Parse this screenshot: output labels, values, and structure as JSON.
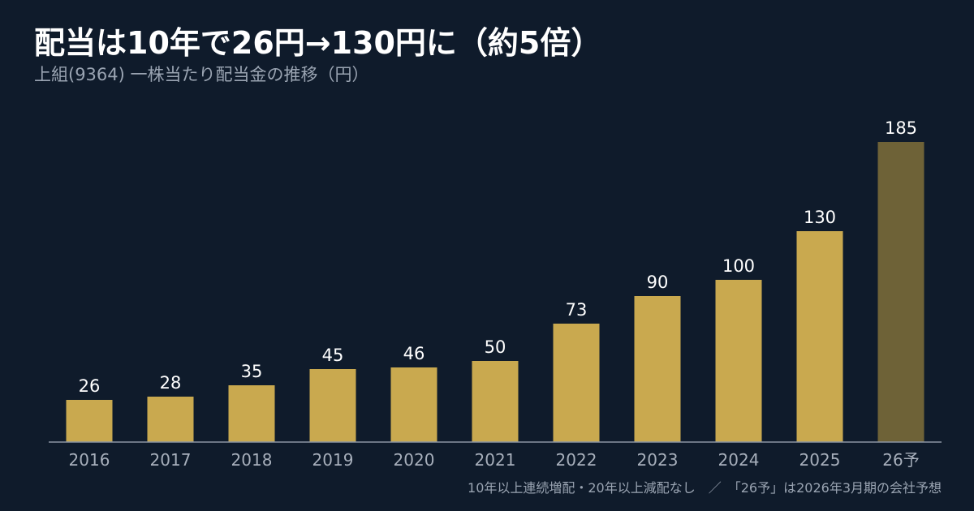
{
  "title": "配当は10年で26円→130円に（約5倍）",
  "subtitle": "上組(9364) 一株当たり配当金の推移（円）",
  "footnote": "10年以上連続増配・20年以上減配なし　／　「26予」は2026年3月期の会社予想",
  "colors": {
    "background": "#0f1b2b",
    "bar_actual": "#c9a94f",
    "bar_forecast": "#6e6237",
    "axis": "#8b95a3",
    "value_label": "#ffffff",
    "tick_label": "#a7afbb"
  },
  "chart_data": {
    "type": "bar",
    "title": "配当は10年で26円→130円に（約5倍）",
    "subtitle": "上組(9364) 一株当たり配当金の推移（円）",
    "xlabel": "",
    "ylabel": "",
    "categories": [
      "2016",
      "2017",
      "2018",
      "2019",
      "2020",
      "2021",
      "2022",
      "2023",
      "2024",
      "2025",
      "26予"
    ],
    "values": [
      26,
      28,
      35,
      45,
      46,
      50,
      73,
      90,
      100,
      130,
      185
    ],
    "forecast": [
      false,
      false,
      false,
      false,
      false,
      false,
      false,
      false,
      false,
      false,
      true
    ],
    "ylim": [
      0,
      185
    ],
    "grid": false,
    "legend": "none"
  }
}
